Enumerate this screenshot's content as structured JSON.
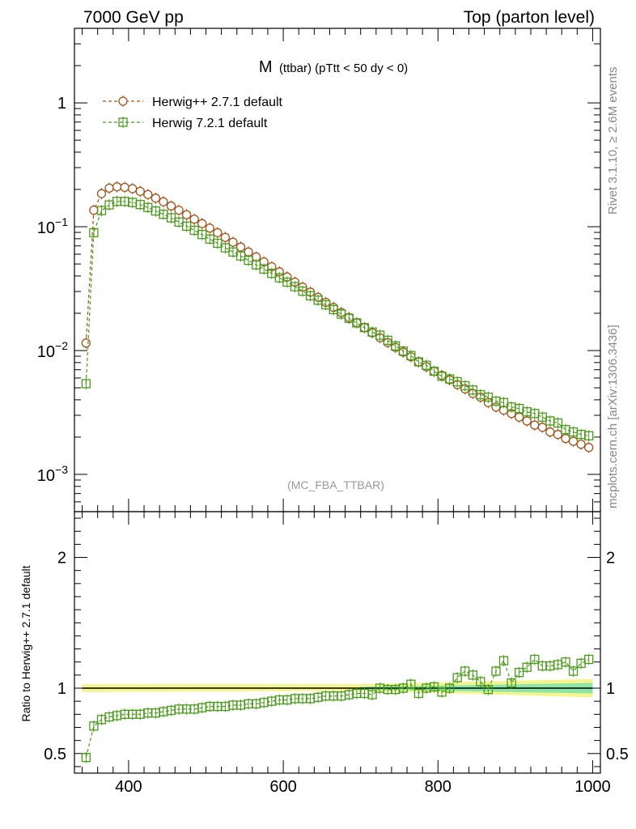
{
  "header": {
    "left": "7000 GeV pp",
    "right": "Top (parton level)"
  },
  "side_labels": {
    "rivet": "Rivet 3.1.10, ≥ 2.6M events",
    "mcplots": "mcplots.cern.ch [arXiv:1306.3436]"
  },
  "chart_data": [
    {
      "type": "line",
      "panel": "main",
      "title_main": "M",
      "title_sub": "(ttbar) (pTtt < 50 dy < 0)",
      "watermark": "(MC_FBA_TTBAR)",
      "yscale": "log",
      "xlim": [
        330,
        1010
      ],
      "ylim": [
        0.0005,
        4
      ],
      "y_ticks": [
        "10^-3",
        "10^-2",
        "10^-1",
        "1"
      ],
      "x": [
        345,
        355,
        365,
        375,
        385,
        395,
        405,
        415,
        425,
        435,
        445,
        455,
        465,
        475,
        485,
        495,
        505,
        515,
        525,
        535,
        545,
        555,
        565,
        575,
        585,
        595,
        605,
        615,
        625,
        635,
        645,
        655,
        665,
        675,
        685,
        695,
        705,
        715,
        725,
        735,
        745,
        755,
        765,
        775,
        785,
        795,
        805,
        815,
        825,
        835,
        845,
        855,
        865,
        875,
        885,
        895,
        905,
        915,
        925,
        935,
        945,
        955,
        965,
        975,
        985,
        995
      ],
      "legend_position": "top-left",
      "series": [
        {
          "name": "Herwig++ 2.7.1 default",
          "color": "#a0521a",
          "marker": "circle",
          "values": [
            0.0115,
            0.136,
            0.185,
            0.205,
            0.21,
            0.208,
            0.203,
            0.193,
            0.182,
            0.17,
            0.159,
            0.147,
            0.136,
            0.125,
            0.115,
            0.106,
            0.0975,
            0.0895,
            0.082,
            0.075,
            0.0685,
            0.0625,
            0.057,
            0.052,
            0.0475,
            0.0432,
            0.0393,
            0.0357,
            0.0325,
            0.0296,
            0.0269,
            0.0245,
            0.0223,
            0.0203,
            0.0185,
            0.0168,
            0.0153,
            0.0139,
            0.0127,
            0.0116,
            0.0106,
            0.0097,
            0.0089,
            0.0081,
            0.0074,
            0.0068,
            0.0063,
            0.0058,
            0.0053,
            0.0049,
            0.0045,
            0.0042,
            0.0038,
            0.0035,
            0.0033,
            0.0031,
            0.0029,
            0.0027,
            0.0025,
            0.0024,
            0.0022,
            0.0021,
            0.00195,
            0.00185,
            0.00175,
            0.00165
          ]
        },
        {
          "name": "Herwig 7.2.1 default",
          "color": "#4a9a1a",
          "marker": "square",
          "values": [
            0.0054,
            0.0895,
            0.135,
            0.15,
            0.16,
            0.16,
            0.157,
            0.151,
            0.143,
            0.134,
            0.126,
            0.118,
            0.109,
            0.101,
            0.0935,
            0.0865,
            0.0795,
            0.0735,
            0.0675,
            0.0625,
            0.058,
            0.0535,
            0.0492,
            0.0455,
            0.042,
            0.0387,
            0.0357,
            0.0328,
            0.0302,
            0.0277,
            0.0255,
            0.0234,
            0.0214,
            0.0197,
            0.0182,
            0.0167,
            0.0153,
            0.0141,
            0.0133,
            0.0121,
            0.0109,
            0.0099,
            0.0091,
            0.0081,
            0.0076,
            0.0068,
            0.0062,
            0.0059,
            0.0056,
            0.0052,
            0.0048,
            0.0044,
            0.0042,
            0.0039,
            0.0038,
            0.0035,
            0.0034,
            0.0032,
            0.0031,
            0.0029,
            0.0027,
            0.0026,
            0.0023,
            0.0022,
            0.0021,
            0.00205
          ]
        }
      ]
    },
    {
      "type": "line",
      "panel": "ratio",
      "ylabel": "Ratio to Herwig++ 2.7.1 default",
      "xlim": [
        330,
        1010
      ],
      "ylim": [
        0.35,
        2.35
      ],
      "x_ticks": [
        400,
        600,
        800,
        1000
      ],
      "y_ticks": [
        0.5,
        1,
        2
      ],
      "reference": 1,
      "x": [
        345,
        355,
        365,
        375,
        385,
        395,
        405,
        415,
        425,
        435,
        445,
        455,
        465,
        475,
        485,
        495,
        505,
        515,
        525,
        535,
        545,
        555,
        565,
        575,
        585,
        595,
        605,
        615,
        625,
        635,
        645,
        655,
        665,
        675,
        685,
        695,
        705,
        715,
        725,
        735,
        745,
        755,
        765,
        775,
        785,
        795,
        805,
        815,
        825,
        835,
        845,
        855,
        865,
        875,
        885,
        895,
        905,
        915,
        925,
        935,
        945,
        955,
        965,
        975,
        985,
        995
      ],
      "series": [
        {
          "name": "Herwig 7.2.1 default",
          "color": "#4a9a1a",
          "marker": "square",
          "values": [
            0.47,
            0.71,
            0.76,
            0.78,
            0.79,
            0.8,
            0.8,
            0.8,
            0.81,
            0.81,
            0.82,
            0.83,
            0.84,
            0.84,
            0.84,
            0.85,
            0.86,
            0.86,
            0.86,
            0.87,
            0.87,
            0.88,
            0.88,
            0.89,
            0.9,
            0.91,
            0.91,
            0.92,
            0.92,
            0.92,
            0.93,
            0.94,
            0.94,
            0.94,
            0.95,
            0.96,
            0.96,
            0.95,
            1.0,
            0.99,
            0.99,
            1.0,
            1.03,
            0.96,
            1.0,
            1.01,
            0.97,
            1.0,
            1.08,
            1.13,
            1.1,
            1.05,
            0.99,
            1.13,
            1.21,
            1.04,
            1.12,
            1.16,
            1.22,
            1.17,
            1.17,
            1.18,
            1.2,
            1.13,
            1.19,
            1.22
          ]
        }
      ]
    }
  ]
}
